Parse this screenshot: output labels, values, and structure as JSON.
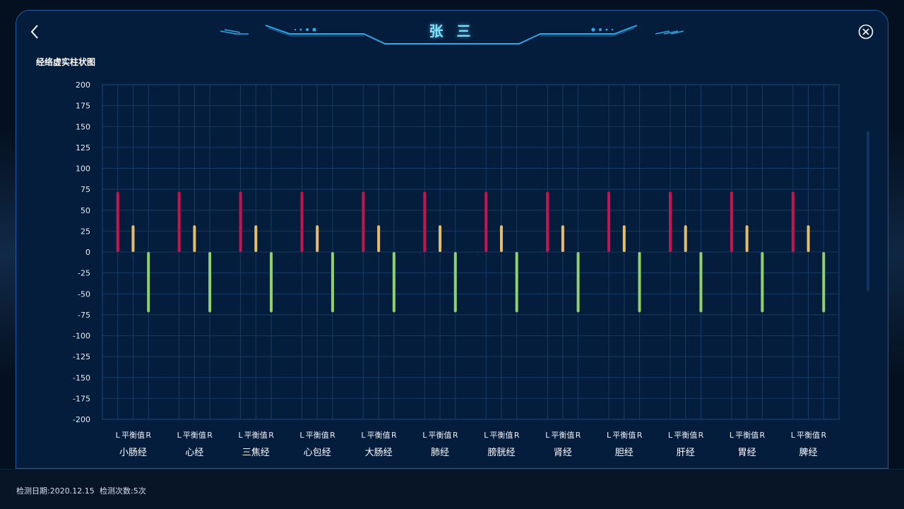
{
  "header": {
    "title": "张 三"
  },
  "chart_data": {
    "type": "bar",
    "title": "经络虚实柱状图",
    "categories": [
      "小肠经",
      "心经",
      "三焦经",
      "心包经",
      "大肠经",
      "肺经",
      "膀胱经",
      "肾经",
      "胆经",
      "肝经",
      "胃经",
      "脾经"
    ],
    "subcategories": [
      "L",
      "平衡值",
      "R"
    ],
    "series": [
      {
        "values": [
          72,
          72,
          72,
          72,
          72,
          72,
          72,
          72,
          72,
          72,
          72,
          72
        ],
        "color": "#c9134f"
      },
      {
        "values": [
          32,
          32,
          32,
          32,
          32,
          32,
          32,
          32,
          32,
          32,
          32,
          32
        ],
        "color": "#e8bd6a"
      },
      {
        "values": [
          -72,
          -72,
          -72,
          -72,
          -72,
          -72,
          -72,
          -72,
          -72,
          -72,
          -72,
          -72
        ],
        "color": "#8fd16a"
      }
    ],
    "ylim": [
      -200,
      200
    ],
    "yticks": [
      200,
      175,
      150,
      125,
      100,
      75,
      50,
      25,
      0,
      -25,
      -50,
      -75,
      -100,
      -125,
      -150,
      -175,
      -200
    ],
    "grid": true
  },
  "footer": {
    "date_text": "检测日期:2020.12.15",
    "count_text": "检测次数:5次"
  },
  "icons": {
    "back": "chevron-left-icon",
    "close": "close-circle-icon"
  }
}
